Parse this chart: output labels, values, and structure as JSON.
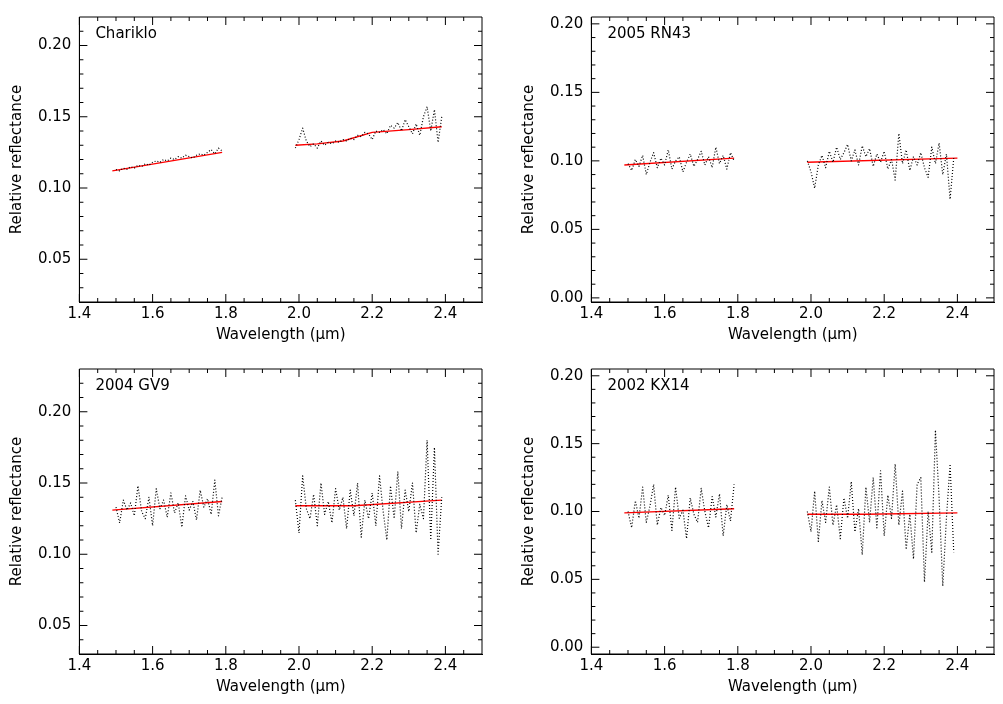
{
  "chart_data": [
    {
      "type": "line",
      "title": "Chariklo",
      "xlabel": "Wavelength (μm)",
      "ylabel": "Relative reflectance",
      "marker": "none",
      "xlim": [
        1.4,
        2.5
      ],
      "ylim": [
        0.02,
        0.22
      ],
      "xticks": [
        {
          "value": 1.4,
          "label": "1.4"
        },
        {
          "value": 1.45,
          "label": null
        },
        {
          "value": 1.5,
          "label": null
        },
        {
          "value": 1.55,
          "label": null
        },
        {
          "value": 1.6,
          "label": "1.6"
        },
        {
          "value": 1.65,
          "label": null
        },
        {
          "value": 1.7,
          "label": null
        },
        {
          "value": 1.75,
          "label": null
        },
        {
          "value": 1.8,
          "label": "1.8"
        },
        {
          "value": 1.85,
          "label": null
        },
        {
          "value": 1.9,
          "label": null
        },
        {
          "value": 1.95,
          "label": null
        },
        {
          "value": 2.0,
          "label": "2.0"
        },
        {
          "value": 2.05,
          "label": null
        },
        {
          "value": 2.1,
          "label": null
        },
        {
          "value": 2.15,
          "label": null
        },
        {
          "value": 2.2,
          "label": "2.2"
        },
        {
          "value": 2.25,
          "label": null
        },
        {
          "value": 2.3,
          "label": null
        },
        {
          "value": 2.35,
          "label": null
        },
        {
          "value": 2.4,
          "label": "2.4"
        },
        {
          "value": 2.45,
          "label": null
        }
      ],
      "yticks": [
        {
          "value": 0.03,
          "label": null
        },
        {
          "value": 0.04,
          "label": null
        },
        {
          "value": 0.05,
          "label": "0.05"
        },
        {
          "value": 0.06,
          "label": null
        },
        {
          "value": 0.07,
          "label": null
        },
        {
          "value": 0.08,
          "label": null
        },
        {
          "value": 0.09,
          "label": null
        },
        {
          "value": 0.1,
          "label": "0.10"
        },
        {
          "value": 0.11,
          "label": null
        },
        {
          "value": 0.12,
          "label": null
        },
        {
          "value": 0.13,
          "label": null
        },
        {
          "value": 0.14,
          "label": null
        },
        {
          "value": 0.15,
          "label": "0.15"
        },
        {
          "value": 0.16,
          "label": null
        },
        {
          "value": 0.17,
          "label": null
        },
        {
          "value": 0.18,
          "label": null
        },
        {
          "value": 0.19,
          "label": null
        },
        {
          "value": 0.2,
          "label": "0.20"
        },
        {
          "value": 0.21,
          "label": null
        }
      ],
      "series": [
        {
          "color": "#000000",
          "line_style": "dotted",
          "x": [
            1.5,
            1.51,
            1.52,
            1.53,
            1.54,
            1.55,
            1.56,
            1.57,
            1.58,
            1.59,
            1.6,
            1.61,
            1.62,
            1.63,
            1.64,
            1.65,
            1.66,
            1.67,
            1.68,
            1.69,
            1.7,
            1.71,
            1.72,
            1.73,
            1.74,
            1.75,
            1.76,
            1.77,
            1.78,
            1.79,
            1.9,
            1.99,
            2.0,
            2.01,
            2.02,
            2.03,
            2.04,
            2.05,
            2.06,
            2.07,
            2.08,
            2.09,
            2.1,
            2.11,
            2.12,
            2.13,
            2.14,
            2.15,
            2.16,
            2.17,
            2.18,
            2.19,
            2.2,
            2.21,
            2.22,
            2.23,
            2.24,
            2.25,
            2.26,
            2.27,
            2.28,
            2.29,
            2.3,
            2.31,
            2.32,
            2.33,
            2.34,
            2.35,
            2.36,
            2.37,
            2.38,
            2.39
          ],
          "values": [
            0.113,
            0.112,
            0.114,
            0.113,
            0.115,
            0.114,
            0.116,
            0.115,
            0.117,
            0.116,
            0.118,
            0.119,
            0.118,
            0.12,
            0.119,
            0.121,
            0.12,
            0.122,
            0.121,
            0.123,
            0.122,
            0.121,
            0.123,
            0.124,
            0.123,
            0.125,
            0.127,
            0.124,
            0.128,
            0.126,
            null,
            0.128,
            0.134,
            0.142,
            0.133,
            0.129,
            0.131,
            0.128,
            0.133,
            0.13,
            0.132,
            0.131,
            0.133,
            0.132,
            0.134,
            0.133,
            0.135,
            0.134,
            0.137,
            0.136,
            0.139,
            0.138,
            0.134,
            0.14,
            0.139,
            0.141,
            0.138,
            0.144,
            0.142,
            0.146,
            0.14,
            0.148,
            0.143,
            0.138,
            0.145,
            0.137,
            0.15,
            0.157,
            0.14,
            0.155,
            0.132,
            0.15
          ]
        },
        {
          "color": "#ff0000",
          "line_style": "solid",
          "x": [
            1.49,
            1.79,
            1.9,
            1.99,
            2.05,
            2.12,
            2.2,
            2.3,
            2.39
          ],
          "values": [
            0.112,
            0.125,
            null,
            0.13,
            0.131,
            0.133,
            0.139,
            0.141,
            0.143
          ]
        }
      ]
    },
    {
      "type": "line",
      "title": "2005 RN43",
      "xlabel": "Wavelength (μm)",
      "ylabel": "Relative reflectance",
      "marker": "none",
      "xlim": [
        1.4,
        2.5
      ],
      "ylim": [
        -0.003,
        0.205
      ],
      "xticks": [
        {
          "value": 1.4,
          "label": "1.4"
        },
        {
          "value": 1.45,
          "label": null
        },
        {
          "value": 1.5,
          "label": null
        },
        {
          "value": 1.55,
          "label": null
        },
        {
          "value": 1.6,
          "label": "1.6"
        },
        {
          "value": 1.65,
          "label": null
        },
        {
          "value": 1.7,
          "label": null
        },
        {
          "value": 1.75,
          "label": null
        },
        {
          "value": 1.8,
          "label": "1.8"
        },
        {
          "value": 1.85,
          "label": null
        },
        {
          "value": 1.9,
          "label": null
        },
        {
          "value": 1.95,
          "label": null
        },
        {
          "value": 2.0,
          "label": "2.0"
        },
        {
          "value": 2.05,
          "label": null
        },
        {
          "value": 2.1,
          "label": null
        },
        {
          "value": 2.15,
          "label": null
        },
        {
          "value": 2.2,
          "label": "2.2"
        },
        {
          "value": 2.25,
          "label": null
        },
        {
          "value": 2.3,
          "label": null
        },
        {
          "value": 2.35,
          "label": null
        },
        {
          "value": 2.4,
          "label": "2.4"
        },
        {
          "value": 2.45,
          "label": null
        }
      ],
      "yticks": [
        {
          "value": 0,
          "label": "0.00"
        },
        {
          "value": 0.01,
          "label": null
        },
        {
          "value": 0.02,
          "label": null
        },
        {
          "value": 0.03,
          "label": null
        },
        {
          "value": 0.04,
          "label": null
        },
        {
          "value": 0.05,
          "label": "0.05"
        },
        {
          "value": 0.06,
          "label": null
        },
        {
          "value": 0.07,
          "label": null
        },
        {
          "value": 0.08,
          "label": null
        },
        {
          "value": 0.09,
          "label": null
        },
        {
          "value": 0.1,
          "label": "0.10"
        },
        {
          "value": 0.11,
          "label": null
        },
        {
          "value": 0.12,
          "label": null
        },
        {
          "value": 0.13,
          "label": null
        },
        {
          "value": 0.14,
          "label": null
        },
        {
          "value": 0.15,
          "label": "0.15"
        },
        {
          "value": 0.16,
          "label": null
        },
        {
          "value": 0.17,
          "label": null
        },
        {
          "value": 0.18,
          "label": null
        },
        {
          "value": 0.19,
          "label": null
        },
        {
          "value": 0.2,
          "label": "0.20"
        }
      ],
      "series": [
        {
          "color": "#000000",
          "line_style": "dotted",
          "x": [
            1.5,
            1.51,
            1.52,
            1.53,
            1.54,
            1.55,
            1.56,
            1.57,
            1.58,
            1.59,
            1.6,
            1.61,
            1.62,
            1.63,
            1.64,
            1.65,
            1.66,
            1.67,
            1.68,
            1.69,
            1.7,
            1.71,
            1.72,
            1.73,
            1.74,
            1.75,
            1.76,
            1.77,
            1.78,
            1.79,
            1.9,
            1.99,
            2.0,
            2.01,
            2.02,
            2.03,
            2.04,
            2.05,
            2.06,
            2.07,
            2.08,
            2.09,
            2.1,
            2.11,
            2.12,
            2.13,
            2.14,
            2.15,
            2.16,
            2.17,
            2.18,
            2.19,
            2.2,
            2.21,
            2.22,
            2.23,
            2.24,
            2.25,
            2.26,
            2.27,
            2.28,
            2.29,
            2.3,
            2.31,
            2.32,
            2.33,
            2.34,
            2.35,
            2.36,
            2.37,
            2.38,
            2.39
          ],
          "values": [
            0.098,
            0.093,
            0.101,
            0.096,
            0.104,
            0.09,
            0.099,
            0.106,
            0.095,
            0.102,
            0.097,
            0.108,
            0.094,
            0.1,
            0.103,
            0.092,
            0.099,
            0.105,
            0.096,
            0.101,
            0.107,
            0.097,
            0.103,
            0.095,
            0.11,
            0.098,
            0.104,
            0.094,
            0.106,
            0.1,
            null,
            0.1,
            0.092,
            0.08,
            0.097,
            0.104,
            0.095,
            0.107,
            0.099,
            0.11,
            0.101,
            0.106,
            0.112,
            0.1,
            0.108,
            0.097,
            0.111,
            0.103,
            0.109,
            0.096,
            0.105,
            0.099,
            0.107,
            0.094,
            0.101,
            0.086,
            0.12,
            0.098,
            0.108,
            0.093,
            0.103,
            0.097,
            0.106,
            0.095,
            0.088,
            0.11,
            0.098,
            0.113,
            0.09,
            0.105,
            0.072,
            0.102
          ]
        },
        {
          "color": "#ff0000",
          "line_style": "solid",
          "x": [
            1.49,
            1.79,
            1.9,
            1.99,
            2.4
          ],
          "values": [
            0.097,
            0.102,
            null,
            0.099,
            0.102
          ]
        }
      ]
    },
    {
      "type": "line",
      "title": "2004 GV9",
      "xlabel": "Wavelength (μm)",
      "ylabel": "Relative reflectance",
      "marker": "none",
      "xlim": [
        1.4,
        2.5
      ],
      "ylim": [
        0.03,
        0.23
      ],
      "xticks": [
        {
          "value": 1.4,
          "label": "1.4"
        },
        {
          "value": 1.45,
          "label": null
        },
        {
          "value": 1.5,
          "label": null
        },
        {
          "value": 1.55,
          "label": null
        },
        {
          "value": 1.6,
          "label": "1.6"
        },
        {
          "value": 1.65,
          "label": null
        },
        {
          "value": 1.7,
          "label": null
        },
        {
          "value": 1.75,
          "label": null
        },
        {
          "value": 1.8,
          "label": "1.8"
        },
        {
          "value": 1.85,
          "label": null
        },
        {
          "value": 1.9,
          "label": null
        },
        {
          "value": 1.95,
          "label": null
        },
        {
          "value": 2.0,
          "label": "2.0"
        },
        {
          "value": 2.05,
          "label": null
        },
        {
          "value": 2.1,
          "label": null
        },
        {
          "value": 2.15,
          "label": null
        },
        {
          "value": 2.2,
          "label": "2.2"
        },
        {
          "value": 2.25,
          "label": null
        },
        {
          "value": 2.3,
          "label": null
        },
        {
          "value": 2.35,
          "label": null
        },
        {
          "value": 2.4,
          "label": "2.4"
        },
        {
          "value": 2.45,
          "label": null
        }
      ],
      "yticks": [
        {
          "value": 0.04,
          "label": null
        },
        {
          "value": 0.05,
          "label": "0.05"
        },
        {
          "value": 0.06,
          "label": null
        },
        {
          "value": 0.07,
          "label": null
        },
        {
          "value": 0.08,
          "label": null
        },
        {
          "value": 0.09,
          "label": null
        },
        {
          "value": 0.1,
          "label": "0.10"
        },
        {
          "value": 0.11,
          "label": null
        },
        {
          "value": 0.12,
          "label": null
        },
        {
          "value": 0.13,
          "label": null
        },
        {
          "value": 0.14,
          "label": null
        },
        {
          "value": 0.15,
          "label": "0.15"
        },
        {
          "value": 0.16,
          "label": null
        },
        {
          "value": 0.17,
          "label": null
        },
        {
          "value": 0.18,
          "label": null
        },
        {
          "value": 0.19,
          "label": null
        },
        {
          "value": 0.2,
          "label": "0.20"
        },
        {
          "value": 0.21,
          "label": null
        },
        {
          "value": 0.22,
          "label": null
        }
      ],
      "series": [
        {
          "color": "#000000",
          "line_style": "dotted",
          "x": [
            1.5,
            1.51,
            1.52,
            1.53,
            1.54,
            1.55,
            1.56,
            1.57,
            1.58,
            1.59,
            1.6,
            1.61,
            1.62,
            1.63,
            1.64,
            1.65,
            1.66,
            1.67,
            1.68,
            1.69,
            1.7,
            1.71,
            1.72,
            1.73,
            1.74,
            1.75,
            1.76,
            1.77,
            1.78,
            1.79,
            1.9,
            1.99,
            2.0,
            2.01,
            2.02,
            2.03,
            2.04,
            2.05,
            2.06,
            2.07,
            2.08,
            2.09,
            2.1,
            2.11,
            2.12,
            2.13,
            2.14,
            2.15,
            2.16,
            2.17,
            2.18,
            2.19,
            2.2,
            2.21,
            2.22,
            2.23,
            2.24,
            2.25,
            2.26,
            2.27,
            2.28,
            2.29,
            2.3,
            2.31,
            2.32,
            2.33,
            2.34,
            2.35,
            2.36,
            2.37,
            2.38,
            2.39
          ],
          "values": [
            0.133,
            0.122,
            0.138,
            0.131,
            0.136,
            0.127,
            0.148,
            0.13,
            0.125,
            0.14,
            0.12,
            0.146,
            0.132,
            0.138,
            0.126,
            0.143,
            0.129,
            0.136,
            0.119,
            0.141,
            0.131,
            0.137,
            0.124,
            0.145,
            0.133,
            0.139,
            0.128,
            0.152,
            0.127,
            0.14,
            null,
            0.138,
            0.115,
            0.155,
            0.132,
            0.125,
            0.142,
            0.12,
            0.15,
            0.128,
            0.137,
            0.122,
            0.146,
            0.131,
            0.14,
            0.118,
            0.145,
            0.127,
            0.15,
            0.112,
            0.138,
            0.125,
            0.143,
            0.12,
            0.155,
            0.13,
            0.11,
            0.148,
            0.125,
            0.158,
            0.118,
            0.145,
            0.13,
            0.15,
            0.115,
            0.135,
            0.125,
            0.18,
            0.11,
            0.175,
            0.1,
            0.14
          ]
        },
        {
          "color": "#ff0000",
          "line_style": "solid",
          "x": [
            1.49,
            1.79,
            1.9,
            1.99,
            2.15,
            2.39
          ],
          "values": [
            0.131,
            0.137,
            null,
            0.134,
            0.134,
            0.138
          ]
        }
      ]
    },
    {
      "type": "line",
      "title": "2002 KX14",
      "xlabel": "Wavelength (μm)",
      "ylabel": "Relative reflectance",
      "marker": "none",
      "xlim": [
        1.4,
        2.5
      ],
      "ylim": [
        -0.005,
        0.205
      ],
      "xticks": [
        {
          "value": 1.4,
          "label": "1.4"
        },
        {
          "value": 1.45,
          "label": null
        },
        {
          "value": 1.5,
          "label": null
        },
        {
          "value": 1.55,
          "label": null
        },
        {
          "value": 1.6,
          "label": "1.6"
        },
        {
          "value": 1.65,
          "label": null
        },
        {
          "value": 1.7,
          "label": null
        },
        {
          "value": 1.75,
          "label": null
        },
        {
          "value": 1.8,
          "label": "1.8"
        },
        {
          "value": 1.85,
          "label": null
        },
        {
          "value": 1.9,
          "label": null
        },
        {
          "value": 1.95,
          "label": null
        },
        {
          "value": 2.0,
          "label": "2.0"
        },
        {
          "value": 2.05,
          "label": null
        },
        {
          "value": 2.1,
          "label": null
        },
        {
          "value": 2.15,
          "label": null
        },
        {
          "value": 2.2,
          "label": "2.2"
        },
        {
          "value": 2.25,
          "label": null
        },
        {
          "value": 2.3,
          "label": null
        },
        {
          "value": 2.35,
          "label": null
        },
        {
          "value": 2.4,
          "label": "2.4"
        },
        {
          "value": 2.45,
          "label": null
        }
      ],
      "yticks": [
        {
          "value": 0,
          "label": "0.00"
        },
        {
          "value": 0.01,
          "label": null
        },
        {
          "value": 0.02,
          "label": null
        },
        {
          "value": 0.03,
          "label": null
        },
        {
          "value": 0.04,
          "label": null
        },
        {
          "value": 0.05,
          "label": "0.05"
        },
        {
          "value": 0.06,
          "label": null
        },
        {
          "value": 0.07,
          "label": null
        },
        {
          "value": 0.08,
          "label": null
        },
        {
          "value": 0.09,
          "label": null
        },
        {
          "value": 0.1,
          "label": "0.10"
        },
        {
          "value": 0.11,
          "label": null
        },
        {
          "value": 0.12,
          "label": null
        },
        {
          "value": 0.13,
          "label": null
        },
        {
          "value": 0.14,
          "label": null
        },
        {
          "value": 0.15,
          "label": "0.15"
        },
        {
          "value": 0.16,
          "label": null
        },
        {
          "value": 0.17,
          "label": null
        },
        {
          "value": 0.18,
          "label": null
        },
        {
          "value": 0.19,
          "label": null
        },
        {
          "value": 0.2,
          "label": "0.20"
        }
      ],
      "series": [
        {
          "color": "#000000",
          "line_style": "dotted",
          "x": [
            1.5,
            1.51,
            1.52,
            1.53,
            1.54,
            1.55,
            1.56,
            1.57,
            1.58,
            1.59,
            1.6,
            1.61,
            1.62,
            1.63,
            1.64,
            1.65,
            1.66,
            1.67,
            1.68,
            1.69,
            1.7,
            1.71,
            1.72,
            1.73,
            1.74,
            1.75,
            1.76,
            1.77,
            1.78,
            1.79,
            1.9,
            1.99,
            2.0,
            2.01,
            2.02,
            2.03,
            2.04,
            2.05,
            2.06,
            2.07,
            2.08,
            2.09,
            2.1,
            2.11,
            2.12,
            2.13,
            2.14,
            2.15,
            2.16,
            2.17,
            2.18,
            2.19,
            2.2,
            2.21,
            2.22,
            2.23,
            2.24,
            2.25,
            2.26,
            2.27,
            2.28,
            2.29,
            2.3,
            2.31,
            2.32,
            2.33,
            2.34,
            2.35,
            2.36,
            2.37,
            2.38,
            2.39
          ],
          "values": [
            0.1,
            0.088,
            0.108,
            0.095,
            0.118,
            0.092,
            0.104,
            0.12,
            0.09,
            0.103,
            0.097,
            0.112,
            0.086,
            0.118,
            0.095,
            0.101,
            0.08,
            0.11,
            0.098,
            0.092,
            0.117,
            0.1,
            0.088,
            0.111,
            0.096,
            0.113,
            0.082,
            0.105,
            0.093,
            0.12,
            null,
            0.1,
            0.085,
            0.115,
            0.078,
            0.108,
            0.092,
            0.118,
            0.09,
            0.105,
            0.08,
            0.11,
            0.095,
            0.122,
            0.085,
            0.102,
            0.068,
            0.118,
            0.092,
            0.125,
            0.088,
            0.13,
            0.082,
            0.112,
            0.095,
            0.135,
            0.09,
            0.115,
            0.072,
            0.098,
            0.065,
            0.12,
            0.125,
            0.048,
            0.1,
            0.07,
            0.16,
            0.11,
            0.045,
            0.095,
            0.135,
            0.07
          ]
        },
        {
          "color": "#ff0000",
          "line_style": "solid",
          "x": [
            1.49,
            1.79,
            1.9,
            1.99,
            2.15,
            2.4
          ],
          "values": [
            0.099,
            0.102,
            null,
            0.098,
            0.098,
            0.099
          ]
        }
      ]
    }
  ]
}
